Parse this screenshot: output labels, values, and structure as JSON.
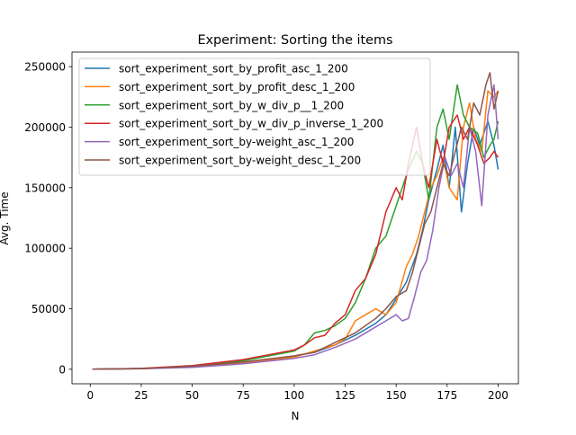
{
  "chart_data": {
    "type": "line",
    "title": "Experiment: Sorting the items",
    "xlabel": "N",
    "ylabel": "Avg. Time",
    "xlim": [
      -8.95,
      209.95
    ],
    "ylim": [
      -12000,
      262000
    ],
    "xticks": [
      0,
      25,
      50,
      75,
      100,
      125,
      150,
      175,
      200
    ],
    "yticks": [
      0,
      50000,
      100000,
      150000,
      200000,
      250000
    ],
    "grid": false,
    "legend_position": "upper-left",
    "series": [
      {
        "name": "sort_experiment_sort_by_profit_asc_1_200",
        "color": "#1f77b4",
        "points": [
          [
            1,
            50
          ],
          [
            25,
            600
          ],
          [
            50,
            2000
          ],
          [
            75,
            5500
          ],
          [
            100,
            11000
          ],
          [
            110,
            14000
          ],
          [
            120,
            20000
          ],
          [
            130,
            28000
          ],
          [
            140,
            38000
          ],
          [
            145,
            45000
          ],
          [
            150,
            58000
          ],
          [
            155,
            72000
          ],
          [
            160,
            95000
          ],
          [
            163,
            115000
          ],
          [
            166,
            140000
          ],
          [
            170,
            165000
          ],
          [
            173,
            185000
          ],
          [
            176,
            150000
          ],
          [
            179,
            200000
          ],
          [
            182,
            130000
          ],
          [
            185,
            170000
          ],
          [
            188,
            200000
          ],
          [
            191,
            185000
          ],
          [
            195,
            205000
          ],
          [
            198,
            185000
          ],
          [
            200,
            165000
          ]
        ]
      },
      {
        "name": "sort_experiment_sort_by_profit_desc_1_200",
        "color": "#ff7f0e",
        "points": [
          [
            1,
            50
          ],
          [
            25,
            500
          ],
          [
            50,
            2000
          ],
          [
            75,
            5000
          ],
          [
            100,
            10000
          ],
          [
            110,
            15000
          ],
          [
            120,
            20000
          ],
          [
            125,
            25000
          ],
          [
            130,
            40000
          ],
          [
            135,
            45000
          ],
          [
            140,
            50000
          ],
          [
            145,
            45000
          ],
          [
            150,
            55000
          ],
          [
            155,
            85000
          ],
          [
            158,
            95000
          ],
          [
            161,
            110000
          ],
          [
            164,
            130000
          ],
          [
            167,
            150000
          ],
          [
            170,
            160000
          ],
          [
            173,
            175000
          ],
          [
            176,
            150000
          ],
          [
            180,
            140000
          ],
          [
            183,
            200000
          ],
          [
            186,
            220000
          ],
          [
            189,
            190000
          ],
          [
            192,
            180000
          ],
          [
            195,
            230000
          ],
          [
            198,
            225000
          ],
          [
            200,
            230000
          ]
        ]
      },
      {
        "name": "sort_experiment_sort_by_w_div_p__1_200",
        "color": "#2ca02c",
        "points": [
          [
            1,
            50
          ],
          [
            25,
            600
          ],
          [
            50,
            2500
          ],
          [
            75,
            7000
          ],
          [
            100,
            15000
          ],
          [
            105,
            20000
          ],
          [
            110,
            30000
          ],
          [
            115,
            32000
          ],
          [
            120,
            36000
          ],
          [
            125,
            42000
          ],
          [
            130,
            55000
          ],
          [
            135,
            75000
          ],
          [
            140,
            100000
          ],
          [
            145,
            110000
          ],
          [
            150,
            135000
          ],
          [
            153,
            150000
          ],
          [
            156,
            165000
          ],
          [
            160,
            180000
          ],
          [
            163,
            170000
          ],
          [
            166,
            140000
          ],
          [
            170,
            200000
          ],
          [
            173,
            215000
          ],
          [
            176,
            190000
          ],
          [
            180,
            235000
          ],
          [
            183,
            210000
          ],
          [
            186,
            200000
          ],
          [
            190,
            195000
          ],
          [
            193,
            175000
          ],
          [
            196,
            185000
          ],
          [
            198,
            190000
          ],
          [
            200,
            205000
          ]
        ]
      },
      {
        "name": "sort_experiment_sort_by_w_div_p_inverse_1_200",
        "color": "#d62728",
        "points": [
          [
            1,
            50
          ],
          [
            25,
            700
          ],
          [
            50,
            3000
          ],
          [
            75,
            8000
          ],
          [
            100,
            16000
          ],
          [
            105,
            20000
          ],
          [
            110,
            26000
          ],
          [
            115,
            28000
          ],
          [
            120,
            38000
          ],
          [
            125,
            45000
          ],
          [
            130,
            65000
          ],
          [
            135,
            75000
          ],
          [
            140,
            95000
          ],
          [
            145,
            130000
          ],
          [
            150,
            150000
          ],
          [
            153,
            140000
          ],
          [
            156,
            170000
          ],
          [
            160,
            200000
          ],
          [
            163,
            170000
          ],
          [
            166,
            150000
          ],
          [
            170,
            190000
          ],
          [
            173,
            170000
          ],
          [
            176,
            200000
          ],
          [
            180,
            210000
          ],
          [
            183,
            190000
          ],
          [
            186,
            200000
          ],
          [
            190,
            185000
          ],
          [
            193,
            170000
          ],
          [
            196,
            175000
          ],
          [
            198,
            180000
          ],
          [
            200,
            175000
          ]
        ]
      },
      {
        "name": "sort_experiment_sort_by-weight_asc_1_200",
        "color": "#9467bd",
        "points": [
          [
            1,
            50
          ],
          [
            25,
            500
          ],
          [
            50,
            1500
          ],
          [
            75,
            4500
          ],
          [
            100,
            9000
          ],
          [
            110,
            12000
          ],
          [
            120,
            18000
          ],
          [
            130,
            25000
          ],
          [
            140,
            35000
          ],
          [
            145,
            40000
          ],
          [
            150,
            45000
          ],
          [
            153,
            40000
          ],
          [
            156,
            42000
          ],
          [
            159,
            60000
          ],
          [
            162,
            80000
          ],
          [
            165,
            90000
          ],
          [
            168,
            115000
          ],
          [
            171,
            150000
          ],
          [
            174,
            175000
          ],
          [
            177,
            160000
          ],
          [
            180,
            170000
          ],
          [
            183,
            150000
          ],
          [
            186,
            200000
          ],
          [
            189,
            180000
          ],
          [
            192,
            135000
          ],
          [
            195,
            210000
          ],
          [
            198,
            235000
          ],
          [
            200,
            190000
          ]
        ]
      },
      {
        "name": "sort_experiment_sort_by-weight_desc_1_200",
        "color": "#8c564b",
        "points": [
          [
            1,
            50
          ],
          [
            25,
            500
          ],
          [
            50,
            2500
          ],
          [
            75,
            6000
          ],
          [
            100,
            11000
          ],
          [
            110,
            14000
          ],
          [
            120,
            22000
          ],
          [
            130,
            30000
          ],
          [
            140,
            42000
          ],
          [
            145,
            50000
          ],
          [
            150,
            60000
          ],
          [
            155,
            65000
          ],
          [
            158,
            80000
          ],
          [
            161,
            100000
          ],
          [
            164,
            120000
          ],
          [
            167,
            130000
          ],
          [
            170,
            150000
          ],
          [
            173,
            170000
          ],
          [
            176,
            160000
          ],
          [
            179,
            180000
          ],
          [
            182,
            200000
          ],
          [
            185,
            190000
          ],
          [
            188,
            220000
          ],
          [
            191,
            210000
          ],
          [
            194,
            235000
          ],
          [
            196,
            245000
          ],
          [
            198,
            215000
          ],
          [
            200,
            230000
          ]
        ]
      }
    ]
  }
}
